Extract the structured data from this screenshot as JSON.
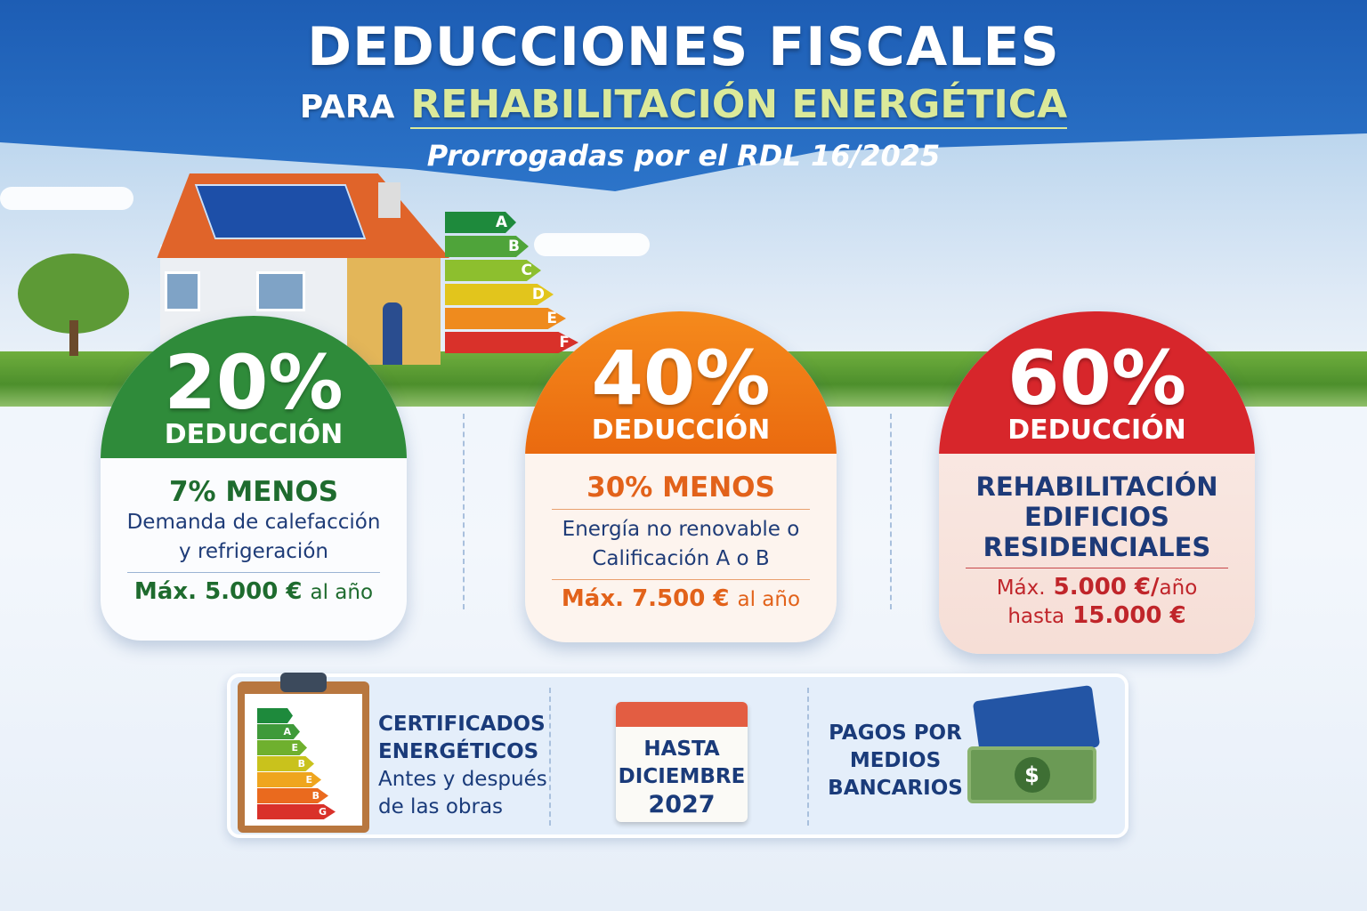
{
  "header": {
    "title": "DEDUCCIONES FISCALES",
    "line2_prefix": "PARA",
    "line2_highlight": "REHABILITACIÓN ENERGÉTICA",
    "subtitle": "Prorrogadas por el RDL 16/2025"
  },
  "energy_scale": [
    "A",
    "B",
    "C",
    "D",
    "E",
    "F"
  ],
  "energy_colors": [
    "#1e8a3c",
    "#4fa43a",
    "#8dbf2e",
    "#e2c51c",
    "#ef8b1e",
    "#d9312a"
  ],
  "cards": [
    {
      "percent": "20%",
      "label": "DEDUCCIÓN",
      "headline": "7% MENOS",
      "description": [
        "Demanda de calefacción",
        "y refrigeración"
      ],
      "max_prefix": "Máx.",
      "max_amount": "5.000 €",
      "max_suffix": "al año",
      "color": "#2f8b3a"
    },
    {
      "percent": "40%",
      "label": "DEDUCCIÓN",
      "headline": "30% MENOS",
      "description": [
        "Energía no renovable o",
        "Calificación A o B"
      ],
      "max_prefix": "Máx.",
      "max_amount": "7.500 €",
      "max_suffix": "al año",
      "color": "#ef7a14"
    },
    {
      "percent": "60%",
      "label": "DEDUCCIÓN",
      "headline": [
        "REHABILITACIÓN",
        "EDIFICIOS",
        "RESIDENCIALES"
      ],
      "max_prefix": "Máx.",
      "max_amount": "5.000 €/",
      "max_suffix": "año",
      "limit_prefix": "hasta",
      "limit_amount": "15.000 €",
      "color": "#d7262b"
    }
  ],
  "bottom": {
    "certificates": {
      "title": [
        "CERTIFICADOS",
        "ENERGÉTICOS"
      ],
      "text": [
        "Antes y después",
        "de las obras"
      ],
      "labels": [
        "",
        "A",
        "E",
        "B",
        "E",
        "B",
        "G"
      ]
    },
    "deadline": {
      "lines": [
        "HASTA",
        "DICIEMBRE",
        "2027"
      ]
    },
    "payments": {
      "lines": [
        "PAGOS POR",
        "MEDIOS",
        "BANCARIOS"
      ],
      "currency_symbol": "$"
    }
  }
}
